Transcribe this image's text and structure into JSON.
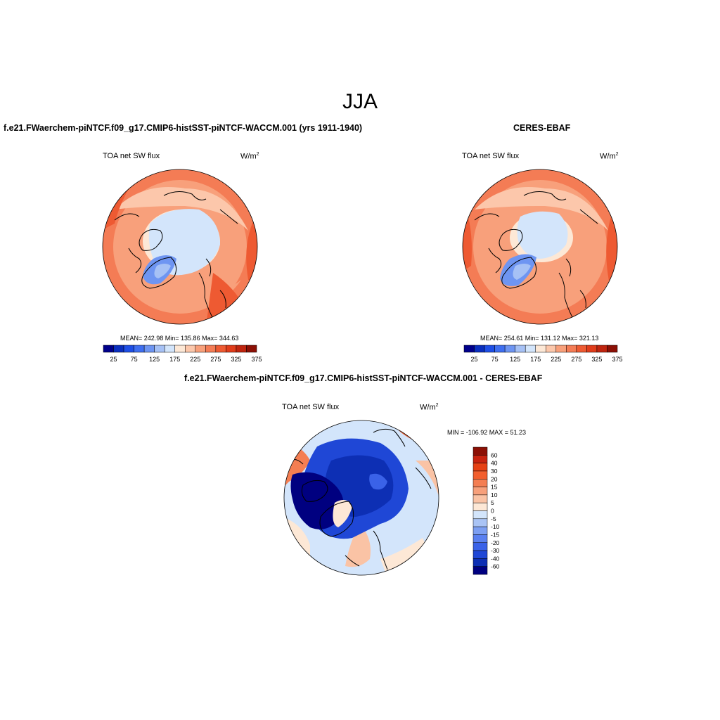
{
  "season": "JJA",
  "panels": [
    {
      "title": "f.e21.FWaerchem-piNTCF.f09_g17.CMIP6-histSST-piNTCF-WACCM.001 (yrs 1911-1940)",
      "variable": "TOA net SW flux",
      "units_base": "W/m",
      "units_exp": "2",
      "stats": {
        "mean": "242.98",
        "min": "135.86",
        "max": "344.63"
      },
      "stats_text": "MEAN= 242.98  Min= 135.86  Max= 344.63"
    },
    {
      "title": "CERES-EBAF",
      "variable": "TOA net SW flux",
      "units_base": "W/m",
      "units_exp": "2",
      "stats": {
        "mean": "254.61",
        "min": "131.12",
        "max": "321.13"
      },
      "stats_text": "MEAN= 254.61  Min= 131.12  Max= 321.13"
    },
    {
      "title": "f.e21.FWaerchem-piNTCF.f09_g17.CMIP6-histSST-piNTCF-WACCM.001 - CERES-EBAF",
      "variable": "TOA net SW flux",
      "units_base": "W/m",
      "units_exp": "2",
      "stats": {
        "min": "-106.92",
        "max": "51.23"
      },
      "stats_text": "MIN = -106.92 MAX =  51.23"
    }
  ],
  "colorbars": {
    "absolute": {
      "colors": [
        "#00008b",
        "#0a2fbf",
        "#1e4fe6",
        "#3f6ff0",
        "#6e95f2",
        "#a6c1f5",
        "#d3e5fb",
        "#fde8d6",
        "#fcc7ab",
        "#f8a07b",
        "#f47c55",
        "#ee5a32",
        "#e03c1a",
        "#bf250f",
        "#8c1005"
      ],
      "tick_labels": [
        "25",
        "75",
        "125",
        "175",
        "225",
        "275",
        "325",
        "375"
      ]
    },
    "difference": {
      "colors_top_to_bottom": [
        "#8c1005",
        "#c8230f",
        "#e64114",
        "#f25f2e",
        "#f47e52",
        "#f7a07b",
        "#fac3a5",
        "#fde8d6",
        "#d3e5fb",
        "#aac4f5",
        "#7d9ff2",
        "#5a80f0",
        "#3a62e8",
        "#1f47d6",
        "#0d2fb4",
        "#000080"
      ],
      "tick_labels": [
        "60",
        "40",
        "30",
        "20",
        "15",
        "10",
        "5",
        "0",
        "-5",
        "-10",
        "-15",
        "-20",
        "-30",
        "-40",
        "-60"
      ]
    }
  },
  "map_fields": {
    "model": {
      "mean": 242.98,
      "min": 135.86,
      "max": 344.63
    },
    "obs": {
      "mean": 254.61,
      "min": 131.12,
      "max": 321.13
    },
    "diff": {
      "min": -106.92,
      "max": 51.23
    }
  }
}
